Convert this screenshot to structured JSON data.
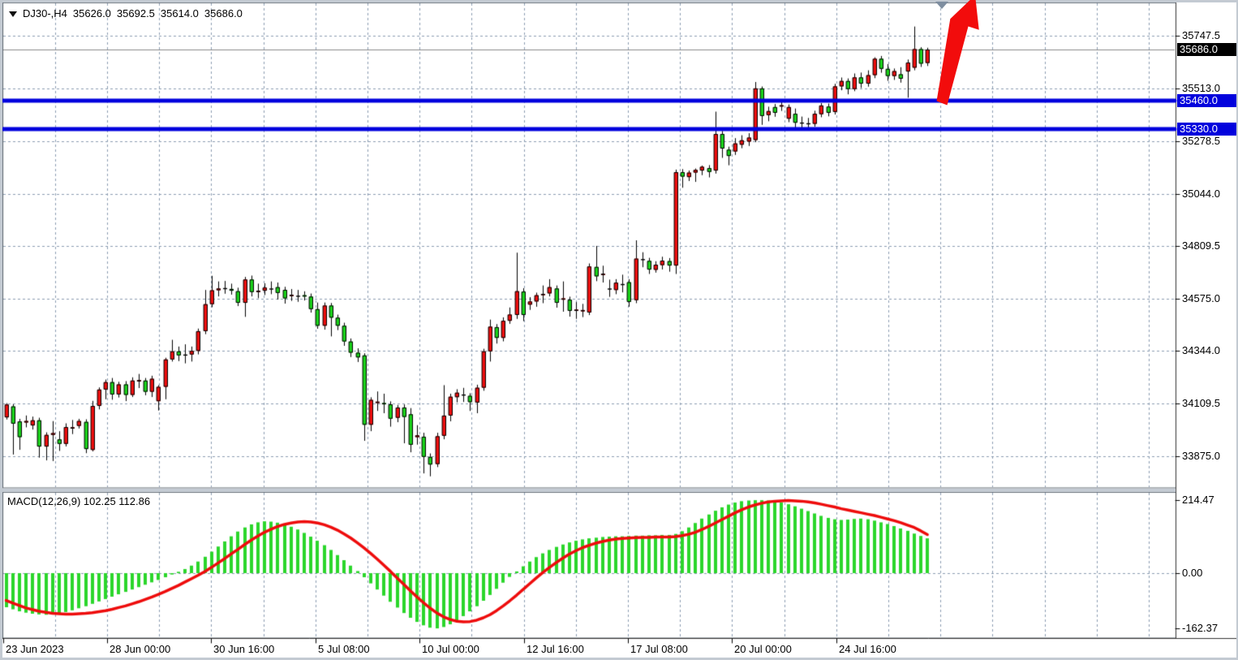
{
  "header": {
    "symbol_period": "DJ30-,H4",
    "open": "35626.0",
    "high": "35692.5",
    "low": "35614.0",
    "close": "35686.0"
  },
  "chart_data": {
    "type": "candlestick",
    "title": "DJ30-,H4 35626.0 35692.5 35614.0 35686.0",
    "symbol": "DJ30-",
    "timeframe": "H4",
    "legend_position": "top-left",
    "grid": true,
    "price_axis": {
      "ticks": [
        35747.5,
        35513.0,
        35278.5,
        35044.0,
        34809.5,
        34575.0,
        34344.0,
        34109.5,
        33875.0
      ],
      "tick_labels": [
        "35747.5",
        "35513.0",
        "35278.5",
        "35044.0",
        "34809.5",
        "34575.0",
        "34344.0",
        "34109.5",
        "33875.0"
      ],
      "current_price": 35686.0,
      "current_price_label": "35686.0",
      "ylim": [
        33810,
        35800
      ]
    },
    "levels": [
      {
        "price": 35460.0,
        "label": "35460.0",
        "color": "#0202dd",
        "type": "resistance-support-line"
      },
      {
        "price": 35330.0,
        "label": "35330.0",
        "color": "#0202dd",
        "type": "resistance-support-line"
      }
    ],
    "time_axis": {
      "tick_labels": [
        "23 Jun 2023",
        "28 Jun 00:00",
        "30 Jun 16:00",
        "5 Jul 08:00",
        "10 Jul 00:00",
        "12 Jul 16:00",
        "17 Jul 08:00",
        "20 Jul 00:00",
        "24 Jul 16:00"
      ]
    },
    "candles_note": "each candle is [open, high, low, close]; bullish candles are red, bearish are green in this color scheme",
    "candles": [
      [
        34048,
        34110,
        34040,
        34105
      ],
      [
        34097,
        34105,
        33884,
        34020
      ],
      [
        34030,
        34040,
        33905,
        33960
      ],
      [
        34025,
        34055,
        34005,
        34032
      ],
      [
        34012,
        34050,
        33995,
        34035
      ],
      [
        34035,
        34045,
        33870,
        33918
      ],
      [
        33918,
        33980,
        33858,
        33970
      ],
      [
        33970,
        34030,
        33855,
        33978
      ],
      [
        33950,
        33985,
        33900,
        33930
      ],
      [
        33930,
        34020,
        33920,
        34005
      ],
      [
        33998,
        34035,
        33975,
        34004
      ],
      [
        34010,
        34040,
        34000,
        34032
      ],
      [
        34028,
        34038,
        33890,
        33907
      ],
      [
        33903,
        34120,
        33898,
        34099
      ],
      [
        34099,
        34180,
        34085,
        34172
      ],
      [
        34172,
        34215,
        34130,
        34205
      ],
      [
        34205,
        34222,
        34128,
        34150
      ],
      [
        34150,
        34205,
        34138,
        34195
      ],
      [
        34195,
        34208,
        34122,
        34148
      ],
      [
        34148,
        34225,
        34140,
        34212
      ],
      [
        34208,
        34240,
        34180,
        34214
      ],
      [
        34212,
        34222,
        34148,
        34162
      ],
      [
        34162,
        34232,
        34140,
        34220
      ],
      [
        34120,
        34190,
        34080,
        34184
      ],
      [
        34184,
        34312,
        34130,
        34306
      ],
      [
        34306,
        34392,
        34298,
        34342
      ],
      [
        34342,
        34362,
        34300,
        34324
      ],
      [
        34324,
        34372,
        34290,
        34328
      ],
      [
        34328,
        34362,
        34298,
        34344
      ],
      [
        34344,
        34442,
        34330,
        34432
      ],
      [
        34432,
        34614,
        34420,
        34552
      ],
      [
        34552,
        34677,
        34540,
        34614
      ],
      [
        34614,
        34652,
        34588,
        34622
      ],
      [
        34622,
        34654,
        34600,
        34624
      ],
      [
        34620,
        34642,
        34596,
        34612
      ],
      [
        34610,
        34624,
        34545,
        34558
      ],
      [
        34558,
        34672,
        34497,
        34662
      ],
      [
        34662,
        34678,
        34588,
        34606
      ],
      [
        34606,
        34642,
        34580,
        34612
      ],
      [
        34612,
        34644,
        34594,
        34626
      ],
      [
        34622,
        34652,
        34598,
        34620
      ],
      [
        34628,
        34647,
        34574,
        34602
      ],
      [
        34616,
        34628,
        34556,
        34578
      ],
      [
        34588,
        34618,
        34568,
        34594
      ],
      [
        34590,
        34614,
        34564,
        34588
      ],
      [
        34592,
        34608,
        34570,
        34586
      ],
      [
        34586,
        34598,
        34516,
        34530
      ],
      [
        34530,
        34558,
        34444,
        34456
      ],
      [
        34456,
        34558,
        34440,
        34546
      ],
      [
        34546,
        34556,
        34410,
        34492
      ],
      [
        34492,
        34504,
        34438,
        34456
      ],
      [
        34456,
        34468,
        34368,
        34386
      ],
      [
        34386,
        34398,
        34318,
        34336
      ],
      [
        34336,
        34354,
        34296,
        34315
      ],
      [
        34324,
        34332,
        33945,
        34015
      ],
      [
        34015,
        34136,
        33988,
        34126
      ],
      [
        34112,
        34162,
        34078,
        34118
      ],
      [
        34112,
        34152,
        34068,
        34106
      ],
      [
        34106,
        34118,
        34008,
        34042
      ],
      [
        34046,
        34102,
        34028,
        34092
      ],
      [
        34092,
        34104,
        33934,
        34050
      ],
      [
        34062,
        34088,
        33894,
        33926
      ],
      [
        33960,
        34012,
        33928,
        33968
      ],
      [
        33962,
        33978,
        33800,
        33872
      ],
      [
        33872,
        33886,
        33787,
        33838
      ],
      [
        33840,
        33978,
        33828,
        33964
      ],
      [
        33966,
        34190,
        33952,
        34056
      ],
      [
        34056,
        34152,
        34032,
        34140
      ],
      [
        34138,
        34172,
        34116,
        34158
      ],
      [
        34150,
        34178,
        34118,
        34146
      ],
      [
        34144,
        34154,
        34078,
        34116
      ],
      [
        34114,
        34192,
        34068,
        34180
      ],
      [
        34180,
        34352,
        34168,
        34342
      ],
      [
        34342,
        34482,
        34298,
        34452
      ],
      [
        34450,
        34462,
        34378,
        34402
      ],
      [
        34402,
        34492,
        34388,
        34478
      ],
      [
        34478,
        34536,
        34466,
        34506
      ],
      [
        34504,
        34780,
        34488,
        34610
      ],
      [
        34608,
        34622,
        34478,
        34504
      ],
      [
        34550,
        34582,
        34528,
        34564
      ],
      [
        34564,
        34602,
        34542,
        34592
      ],
      [
        34592,
        34634,
        34558,
        34598
      ],
      [
        34600,
        34662,
        34588,
        34628
      ],
      [
        34622,
        34634,
        34538,
        34558
      ],
      [
        34572,
        34652,
        34520,
        34578
      ],
      [
        34572,
        34584,
        34498,
        34522
      ],
      [
        34522,
        34560,
        34488,
        34528
      ],
      [
        34520,
        34552,
        34496,
        34526
      ],
      [
        34515,
        34732,
        34505,
        34720
      ],
      [
        34718,
        34810,
        34656,
        34676
      ],
      [
        34682,
        34722,
        34650,
        34688
      ],
      [
        34620,
        34660,
        34586,
        34622
      ],
      [
        34615,
        34662,
        34598,
        34648
      ],
      [
        34638,
        34682,
        34606,
        34642
      ],
      [
        34650,
        34662,
        34542,
        34562
      ],
      [
        34570,
        34835,
        34558,
        34755
      ],
      [
        34750,
        34782,
        34718,
        34753
      ],
      [
        34745,
        34757,
        34688,
        34706
      ],
      [
        34705,
        34742,
        34694,
        34728
      ],
      [
        34726,
        34762,
        34708,
        34746
      ],
      [
        34744,
        34756,
        34698,
        34724
      ],
      [
        34724,
        35150,
        34688,
        35140
      ],
      [
        35140,
        35152,
        35072,
        35120
      ],
      [
        35118,
        35146,
        35102,
        35138
      ],
      [
        35138,
        35155,
        35098,
        35150
      ],
      [
        35147,
        35168,
        35128,
        35164
      ],
      [
        35158,
        35170,
        35118,
        35141
      ],
      [
        35147,
        35408,
        35135,
        35310
      ],
      [
        35310,
        35322,
        35205,
        35245
      ],
      [
        35240,
        35252,
        35172,
        35212
      ],
      [
        35232,
        35290,
        35218,
        35268
      ],
      [
        35262,
        35303,
        35248,
        35282
      ],
      [
        35276,
        35312,
        35258,
        35294
      ],
      [
        35283,
        35540,
        35275,
        35513
      ],
      [
        35513,
        35520,
        35352,
        35390
      ],
      [
        35394,
        35430,
        35368,
        35412
      ],
      [
        35430,
        35442,
        35388,
        35404
      ],
      [
        35432,
        35461,
        35414,
        35438
      ],
      [
        35378,
        35440,
        35364,
        35430
      ],
      [
        35400,
        35422,
        35340,
        35360
      ],
      [
        35357,
        35386,
        35328,
        35361
      ],
      [
        35355,
        35380,
        35332,
        35358
      ],
      [
        35355,
        35412,
        35344,
        35400
      ],
      [
        35398,
        35446,
        35386,
        35437
      ],
      [
        35432,
        35444,
        35390,
        35404
      ],
      [
        35408,
        35532,
        35398,
        35522
      ],
      [
        35522,
        35560,
        35506,
        35546
      ],
      [
        35546,
        35556,
        35488,
        35510
      ],
      [
        35510,
        35578,
        35502,
        35562
      ],
      [
        35562,
        35582,
        35516,
        35534
      ],
      [
        35534,
        35592,
        35522,
        35572
      ],
      [
        35572,
        35650,
        35560,
        35645
      ],
      [
        35645,
        35656,
        35584,
        35600
      ],
      [
        35600,
        35620,
        35548,
        35568
      ],
      [
        35568,
        35600,
        35552,
        35590
      ],
      [
        35576,
        35606,
        35540,
        35556
      ],
      [
        35588,
        35640,
        35473,
        35628
      ],
      [
        35605,
        35787,
        35595,
        35688
      ],
      [
        35688,
        35695,
        35610,
        35623
      ],
      [
        35626,
        35692.5,
        35614,
        35686
      ]
    ],
    "macd": {
      "label": "MACD(12,26,9)",
      "main_value": "102.25",
      "signal_value": "112.86",
      "scale_ticks": [
        214.47,
        0.0,
        -162.37
      ],
      "scale_tick_labels": [
        "214.47",
        "0.00",
        "-162.37"
      ],
      "histogram": [
        -100,
        -106,
        -112,
        -116,
        -119,
        -121,
        -122,
        -121,
        -118,
        -114,
        -109,
        -103,
        -97,
        -90,
        -83,
        -76,
        -69,
        -62,
        -55,
        -48,
        -41,
        -34,
        -27,
        -20,
        -12,
        -4,
        4,
        12,
        22,
        34,
        48,
        63,
        78,
        93,
        108,
        122,
        134,
        143,
        149,
        152,
        151,
        148,
        143,
        136,
        128,
        118,
        107,
        95,
        82,
        68,
        53,
        38,
        22,
        6,
        -12,
        -30,
        -48,
        -66,
        -84,
        -101,
        -117,
        -131,
        -143,
        -153,
        -160,
        -162,
        -158,
        -150,
        -139,
        -126,
        -112,
        -97,
        -81,
        -64,
        -46,
        -28,
        -11,
        5,
        20,
        34,
        47,
        58,
        68,
        77,
        84,
        90,
        95,
        99,
        102,
        104,
        106,
        107,
        108,
        108,
        109,
        110,
        110,
        111,
        111,
        112,
        112,
        115,
        123,
        134,
        147,
        160,
        172,
        183,
        193,
        201,
        207,
        211,
        213,
        214,
        214,
        213,
        211,
        207,
        202,
        196,
        189,
        182,
        175,
        168,
        162,
        158,
        156,
        157,
        159,
        160,
        158,
        154,
        149,
        144,
        138,
        131,
        124,
        116,
        109,
        102
      ],
      "signal": [
        -80,
        -88,
        -95,
        -102,
        -107,
        -112,
        -115,
        -118,
        -119,
        -120,
        -120,
        -119,
        -118,
        -116,
        -113,
        -110,
        -106,
        -101,
        -96,
        -90,
        -84,
        -77,
        -70,
        -62,
        -54,
        -45,
        -36,
        -26,
        -16,
        -6,
        5,
        17,
        30,
        43,
        57,
        70,
        84,
        97,
        109,
        120,
        129,
        137,
        143,
        147,
        150,
        151,
        150,
        147,
        142,
        135,
        126,
        115,
        103,
        89,
        74,
        58,
        41,
        23,
        5,
        -14,
        -33,
        -52,
        -70,
        -87,
        -103,
        -117,
        -128,
        -136,
        -141,
        -143,
        -142,
        -138,
        -131,
        -122,
        -110,
        -96,
        -81,
        -65,
        -48,
        -31,
        -14,
        2,
        17,
        31,
        44,
        56,
        66,
        75,
        82,
        88,
        93,
        97,
        100,
        102,
        103,
        104,
        105,
        105,
        106,
        106,
        106,
        107,
        110,
        114,
        120,
        128,
        137,
        147,
        157,
        167,
        177,
        186,
        194,
        200,
        205,
        209,
        211,
        212,
        213,
        212,
        211,
        209,
        206,
        202,
        198,
        194,
        189,
        185,
        181,
        177,
        173,
        169,
        164,
        159,
        154,
        148,
        141,
        134,
        124,
        113
      ]
    },
    "annotations": [
      {
        "type": "arrow",
        "direction": "up",
        "color": "#f20c0c"
      },
      {
        "type": "shift-marker-triangle",
        "direction": "down",
        "color": "#7e8ea0"
      }
    ],
    "colors": {
      "bull_candle": "#ee0f0f",
      "bear_candle": "#1bd31b",
      "candle_outline": "#000000",
      "macd_histogram": "#2bd62b",
      "macd_signal": "#ee0c0c",
      "level_line": "#0202dd",
      "current_price_line": "#8b8b8b",
      "grid": "#8c9db2",
      "background": "#ffffff",
      "current_price_box_bg": "#000000",
      "level_box_bg": "#0202dd"
    }
  }
}
